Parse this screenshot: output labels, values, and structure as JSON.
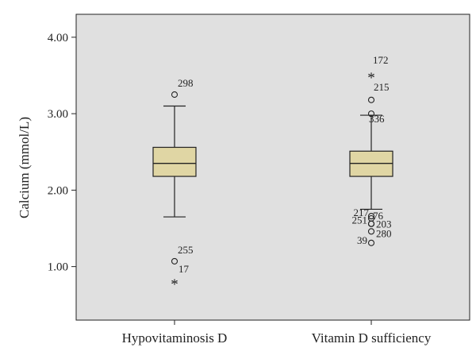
{
  "chart_data": {
    "type": "box",
    "ylabel": "Calcium (mmol/L)",
    "xlabel": "",
    "ylim": [
      0.3,
      4.3
    ],
    "yticks": [
      "1.00",
      "2.00",
      "3.00",
      "4.00"
    ],
    "grid": false,
    "colors": {
      "plot_bg": "#e0e0e0",
      "box_fill": "#e0d6a4",
      "stroke": "#222222"
    },
    "categories": [
      "Hypovitaminosis D",
      "Vitamin D sufficiency"
    ],
    "boxes": [
      {
        "category": "Hypovitaminosis D",
        "whisker_low": 1.65,
        "q1": 2.18,
        "median": 2.35,
        "q3": 2.56,
        "whisker_high": 3.1,
        "outliers": [
          {
            "value": 3.25,
            "label": "298",
            "marker": "circle"
          },
          {
            "value": 1.07,
            "label": "255",
            "marker": "circle"
          },
          {
            "value": 0.8,
            "label": "17",
            "marker": "star"
          }
        ]
      },
      {
        "category": "Vitamin D sufficiency",
        "whisker_low": 1.75,
        "q1": 2.18,
        "median": 2.35,
        "q3": 2.51,
        "whisker_high": 2.98,
        "outliers": [
          {
            "value": 3.5,
            "label": "172",
            "marker": "star"
          },
          {
            "value": 3.18,
            "label": "215",
            "marker": "circle"
          },
          {
            "value": 3.0,
            "label": "336",
            "marker": "circle"
          },
          {
            "value": 1.66,
            "label": "217",
            "marker": "circle"
          },
          {
            "value": 1.63,
            "label": "76",
            "marker": "circle"
          },
          {
            "value": 1.56,
            "label": "251",
            "marker": "circle"
          },
          {
            "value": 1.56,
            "label": "203",
            "marker": "circle"
          },
          {
            "value": 1.46,
            "label": "280",
            "marker": "circle"
          },
          {
            "value": 1.31,
            "label": "39",
            "marker": "circle"
          }
        ]
      }
    ]
  }
}
